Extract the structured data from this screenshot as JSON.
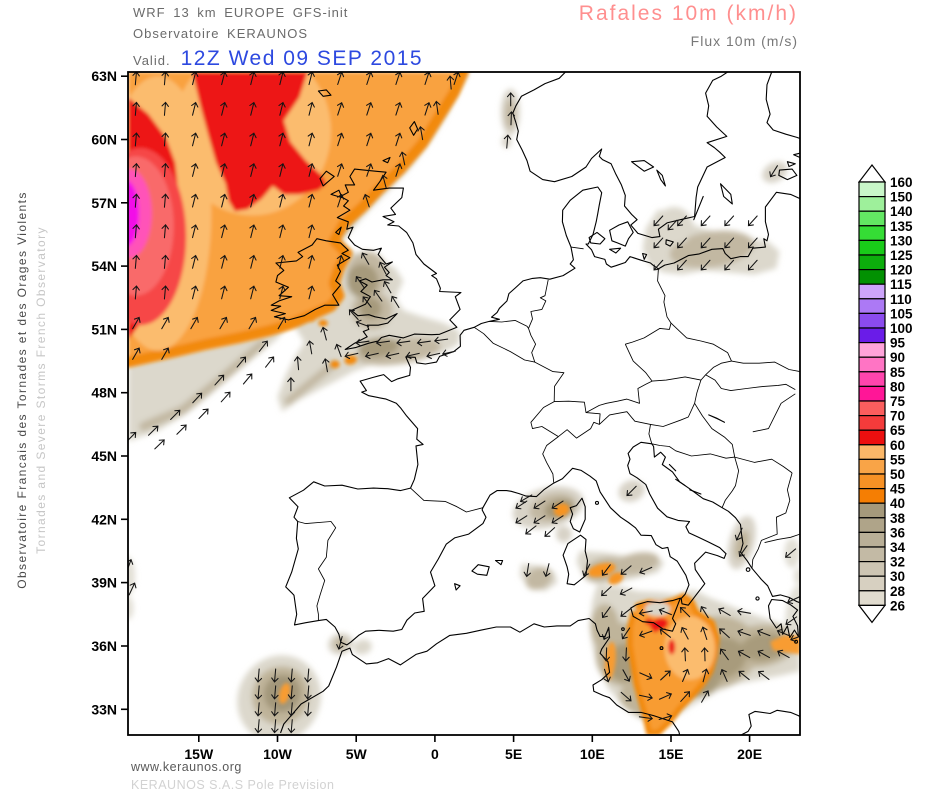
{
  "header": {
    "model_line": "WRF 13 km EUROPE  GFS-init",
    "org_line": "Observatoire KERAUNOS",
    "valid_label": "Valid.",
    "valid_date": "12Z Wed 09 SEP 2015"
  },
  "titles": {
    "main": "Rafales 10m (km/h)",
    "sub": "Flux 10m (m/s)"
  },
  "sidebar": {
    "line_fr": "Observatoire Francais des Tornades et des Orages Violents",
    "line_en": "Tornades and Severe Storms French Observatory"
  },
  "footer": {
    "site": "www.keraunos.org",
    "company": "KERAUNOS S.A.S Pole Prevision"
  },
  "map_axes": {
    "lat_ticks": [
      {
        "label": "63N",
        "value": 63
      },
      {
        "label": "60N",
        "value": 60
      },
      {
        "label": "57N",
        "value": 57
      },
      {
        "label": "54N",
        "value": 54
      },
      {
        "label": "51N",
        "value": 51
      },
      {
        "label": "48N",
        "value": 48
      },
      {
        "label": "45N",
        "value": 45
      },
      {
        "label": "42N",
        "value": 42
      },
      {
        "label": "39N",
        "value": 39
      },
      {
        "label": "36N",
        "value": 36
      },
      {
        "label": "33N",
        "value": 33
      }
    ],
    "lon_ticks": [
      {
        "label": "15W",
        "value": -15
      },
      {
        "label": "10W",
        "value": -10
      },
      {
        "label": "5W",
        "value": -5
      },
      {
        "label": "0",
        "value": 0
      },
      {
        "label": "5E",
        "value": 5
      },
      {
        "label": "10E",
        "value": 10
      },
      {
        "label": "15E",
        "value": 15
      },
      {
        "label": "20E",
        "value": 20
      }
    ]
  },
  "legend": {
    "labels": [
      160,
      150,
      140,
      135,
      130,
      125,
      120,
      115,
      110,
      105,
      100,
      95,
      90,
      85,
      80,
      75,
      70,
      65,
      60,
      55,
      50,
      45,
      40,
      38,
      36,
      34,
      32,
      30,
      28,
      26
    ],
    "cell_colors": [
      "#c9f7c9",
      "#9ef09b",
      "#63e763",
      "#35dd35",
      "#19cb19",
      "#0cae0c",
      "#029102",
      "#cda4fb",
      "#ac79f5",
      "#8b4bee",
      "#6a1ce8",
      "#ffa3da",
      "#ff74c4",
      "#ff45ad",
      "#ff1697",
      "#fb5e5e",
      "#f43b3b",
      "#ec0f0f",
      "#fbb768",
      "#f9a447",
      "#f79125",
      "#f57e03",
      "#a5997b",
      "#afa489",
      "#b9af97",
      "#c3baa5",
      "#cdc5b3",
      "#d7d0c1",
      "#e1dccf"
    ],
    "arrow_fill": "#ffffff"
  },
  "colors": {
    "title_main": "#ff8f8f",
    "subtitle": "#787878",
    "header_gray": "#6b6b6b",
    "valid_date_blue": "#2d49e0",
    "sidebar_dark": "#4a4a4a",
    "sidebar_light": "#c6c6c6",
    "footer_site": "#5a5a5a",
    "footer_company": "#d2d2d2",
    "axis_label": "#000000"
  }
}
